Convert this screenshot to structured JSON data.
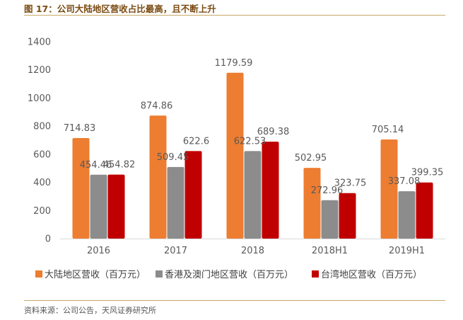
{
  "header": {
    "title": "图 17：公司大陆地区营收占比最高，且不断上升"
  },
  "footer": {
    "source": "资料来源：公司公告，天风证券研究所"
  },
  "chart_data": {
    "type": "bar",
    "title": "图 17：公司大陆地区营收占比最高，且不断上升",
    "xlabel": "",
    "ylabel": "",
    "categories": [
      "2016",
      "2017",
      "2018",
      "2018H1",
      "2019H1"
    ],
    "series": [
      {
        "name": "大陆地区营收（百万元）",
        "color": "#ed7d31",
        "values": [
          714.83,
          874.86,
          1179.59,
          502.95,
          705.14
        ]
      },
      {
        "name": "香港及澳门地区营收（百万元）",
        "color": "#8c8c8c",
        "values": [
          454.46,
          509.45,
          622.53,
          272.96,
          337.08
        ]
      },
      {
        "name": "台湾地区营收（百万元）",
        "color": "#c00000",
        "values": [
          454.82,
          622.6,
          689.38,
          323.75,
          399.35
        ]
      }
    ],
    "ylim": [
      0,
      1400
    ],
    "yticks": [
      0,
      200,
      400,
      600,
      800,
      1000,
      1200,
      1400
    ],
    "value_labels": [
      [
        "714.83",
        "874.86",
        "1179.59",
        "502.95",
        "705.14"
      ],
      [
        "454.46",
        "509.45",
        "622.53",
        "272.96",
        "337.08"
      ],
      [
        "454.82",
        "622.6",
        "689.38",
        "323.75",
        "399.35"
      ]
    ],
    "grid": false,
    "legend_position": "bottom"
  }
}
